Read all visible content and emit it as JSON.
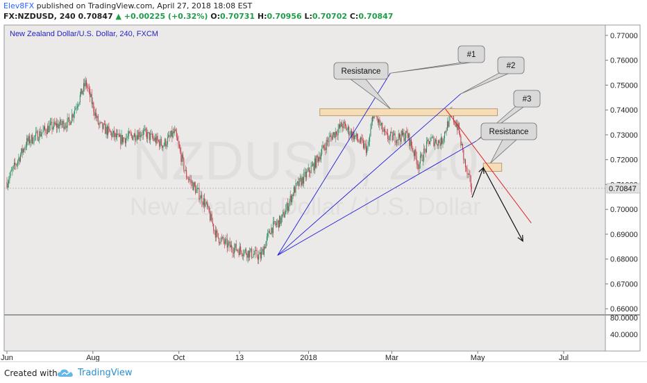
{
  "header": {
    "author": "Elev8FX",
    "published": "published on TradingView.com, April 27, 2018 18:08 EST",
    "symbol_line": "FX:NZDUSD, 240",
    "last": "0.70847",
    "change": "+0.00225 (+0.32%)",
    "o_label": "O:",
    "o_value": "0.70731",
    "h_label": "H:",
    "h_value": "0.70956",
    "l_label": "L:",
    "l_value": "0.70702",
    "c_label": "C:",
    "c_value": "0.70847"
  },
  "footer": {
    "created_with": "Created with",
    "brand": "TradingView"
  },
  "colors": {
    "plot_bg": "#ece9e9",
    "candle_up": "#1f8a5a",
    "candle_down": "#c3323f",
    "fan_line": "#1b1bd6",
    "trend_line": "#e02020",
    "arrow": "#111111",
    "resistance_zone": "#f6ddb8",
    "callout_bg": "#d9d9d9",
    "price_label_bg": "#e3e3e3"
  },
  "chart_data": {
    "type": "line",
    "title": "New Zealand Dollar/U.S. Dollar, 240, FXCM",
    "watermark_symbol": "NZDUSD, 240",
    "watermark_name": "New Zealand Dollar / U.S. Dollar",
    "x_ticks": [
      "Jun",
      "Aug",
      "Oct",
      "13",
      "2018",
      "Mar",
      "May",
      "Jul"
    ],
    "y_ticks": [
      "0.77000",
      "0.76000",
      "0.75000",
      "0.74000",
      "0.73000",
      "0.72000",
      "0.71000",
      "0.70000",
      "0.69000",
      "0.68000",
      "0.67000",
      "0.66000"
    ],
    "ylim": [
      0.6595,
      0.7725
    ],
    "last_price": "0.70847",
    "lower_pane_ticks": [
      "80.0000",
      "40.0000"
    ],
    "series": [
      {
        "x": [
          "2017-06-01",
          "2017-06-15",
          "2017-07-01",
          "2017-07-15",
          "2017-07-27",
          "2017-08-05",
          "2017-08-20",
          "2017-09-05",
          "2017-09-20",
          "2017-09-28",
          "2017-10-06",
          "2017-10-20",
          "2017-10-28",
          "2017-11-06",
          "2017-11-17",
          "2017-11-28",
          "2017-12-05",
          "2017-12-13",
          "2017-12-22",
          "2018-01-05",
          "2018-01-15",
          "2018-01-25",
          "2018-02-05",
          "2018-02-12",
          "2018-02-16",
          "2018-02-25",
          "2018-03-05",
          "2018-03-12",
          "2018-03-20",
          "2018-03-28",
          "2018-04-05",
          "2018-04-12",
          "2018-04-17",
          "2018-04-23",
          "2018-04-27"
        ],
        "y": [
          0.711,
          0.727,
          0.733,
          0.735,
          0.751,
          0.734,
          0.728,
          0.731,
          0.726,
          0.731,
          0.714,
          0.702,
          0.689,
          0.685,
          0.683,
          0.681,
          0.692,
          0.696,
          0.708,
          0.718,
          0.728,
          0.734,
          0.728,
          0.724,
          0.739,
          0.729,
          0.729,
          0.73,
          0.718,
          0.728,
          0.727,
          0.738,
          0.733,
          0.715,
          0.7085
        ]
      }
    ],
    "annotations": {
      "fan_origin": {
        "x": "2017-12-10",
        "y": 0.6815
      },
      "fan_targets": [
        {
          "label": "#1",
          "x": "2018-02-28",
          "y": 0.7548
        },
        {
          "label": "#2",
          "x": "2018-04-19",
          "y": 0.7465
        },
        {
          "label": "#3",
          "x": "2018-04-30",
          "y": 0.7275
        }
      ],
      "resistance_zone_1": {
        "label": "Resistance",
        "x": [
          "2018-01-09",
          "2018-05-15"
        ],
        "y": [
          0.7377,
          0.7405
        ]
      },
      "resistance_zone_2": {
        "label": "Resistance",
        "x": [
          "2018-05-05",
          "2018-05-18"
        ],
        "y": [
          0.7153,
          0.7186
        ]
      },
      "trend_line": {
        "x": [
          "2018-04-08",
          "2018-06-08"
        ],
        "y": [
          0.7405,
          0.6945
        ]
      },
      "projection_path": {
        "x": [
          "2018-04-27",
          "2018-05-05",
          "2018-06-02"
        ],
        "y": [
          0.7048,
          0.7168,
          0.6872
        ]
      }
    }
  }
}
